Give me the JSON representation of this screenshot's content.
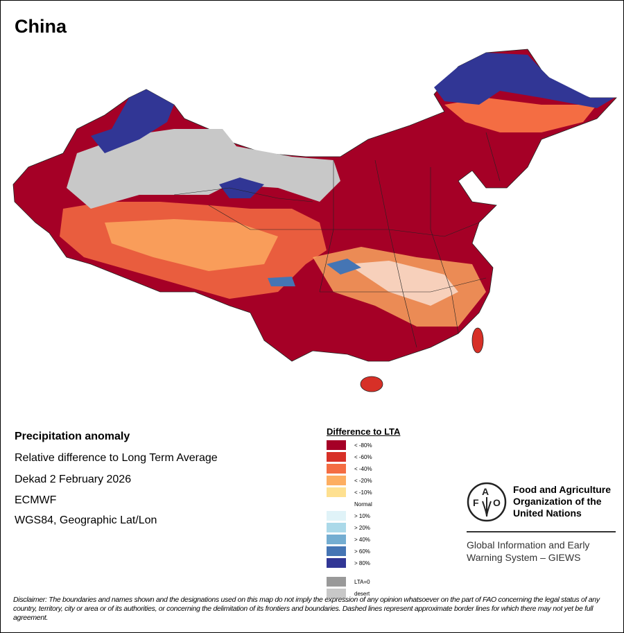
{
  "title": "China",
  "info": {
    "line1": "Precipitation anomaly",
    "line2": "Relative difference to Long Term Average",
    "line3": "Dekad 2 February 2026",
    "line4": "ECMWF",
    "line5": "WGS84, Geographic Lat/Lon"
  },
  "legend": {
    "title": "Difference to LTA",
    "items": [
      {
        "label": "< -80%",
        "color": "#a50026"
      },
      {
        "label": "< -60%",
        "color": "#d73027"
      },
      {
        "label": "< -40%",
        "color": "#f46d43"
      },
      {
        "label": "< -20%",
        "color": "#fdae61"
      },
      {
        "label": "< -10%",
        "color": "#fee090"
      },
      {
        "label": "Normal",
        "color": "#ffffff"
      },
      {
        "label": "> 10%",
        "color": "#e0f3f8"
      },
      {
        "label": "> 20%",
        "color": "#abd9e9"
      },
      {
        "label": "> 40%",
        "color": "#74add1"
      },
      {
        "label": "> 60%",
        "color": "#4575b4"
      },
      {
        "label": "> 80%",
        "color": "#313695"
      },
      {
        "label": "LTA=0",
        "color": "#999999"
      },
      {
        "label": "desert",
        "color": "#c8c8c8"
      }
    ]
  },
  "fao": {
    "name_line1": "Food and Agriculture",
    "name_line2": "Organization of the",
    "name_line3": "United Nations",
    "giews_line1": "Global Information and Early",
    "giews_line2": "Warning System – GIEWS",
    "logo_text": "FAO FIAT PANIS"
  },
  "disclaimer": "Disclaimer: The boundaries and names shown and the designations used on this map do not imply the expression of any opinion whatsoever on the part of FAO concerning the legal status of any country, territory, city or area or of its authorities, or concerning the delimitation of its frontiers and boundaries. Dashed lines represent approximate border lines for which there may not yet be full agreement."
}
